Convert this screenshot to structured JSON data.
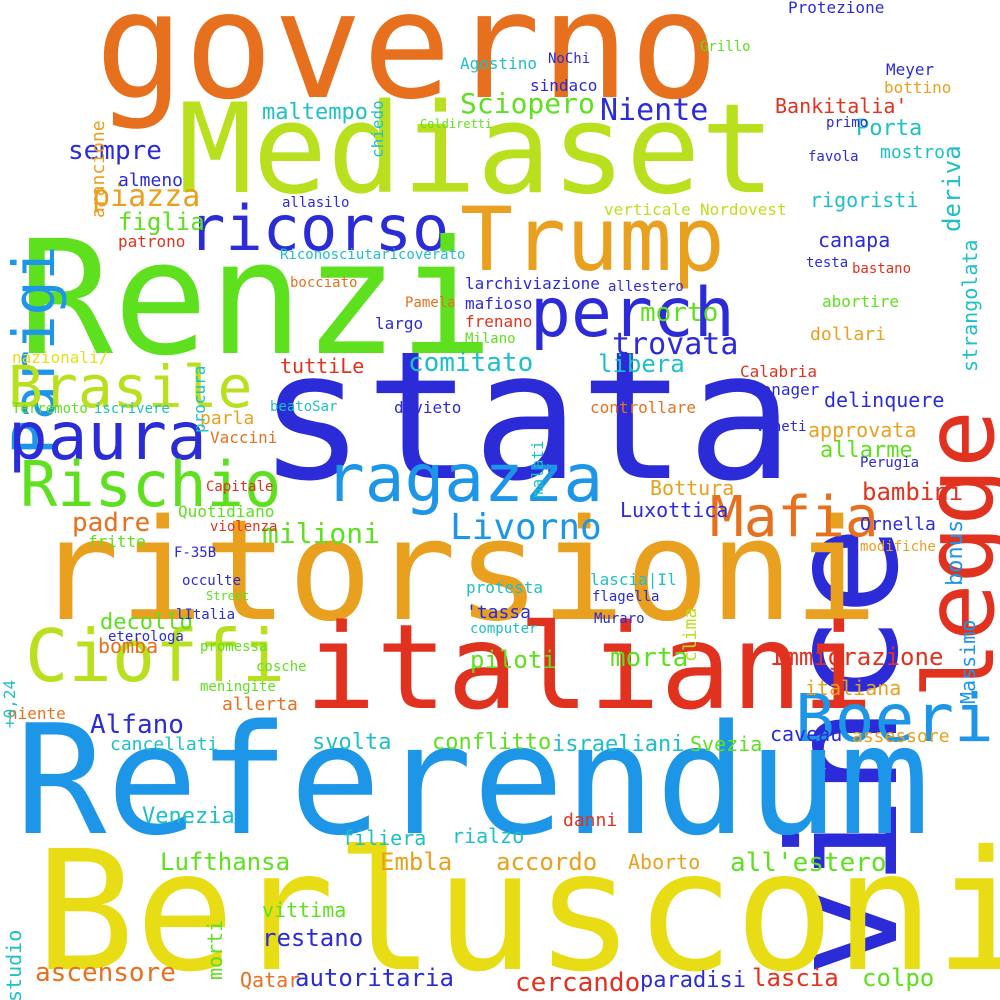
{
  "colors": {
    "blue": "#2b2bd8",
    "sky": "#1e96e8",
    "green": "#5ee01e",
    "lime": "#b8e01e",
    "yellow": "#e8dc14",
    "orange": "#e8a01e",
    "darkorange": "#e6701e",
    "red": "#e0321e",
    "teal": "#1ec0c8",
    "background": "#ffffff"
  },
  "words": [
    {
      "t": "governo",
      "c": "darkorange"
    },
    {
      "t": "Mediaset",
      "c": "lime"
    },
    {
      "t": "Trump",
      "c": "orange"
    },
    {
      "t": "ricorso",
      "c": "blue"
    },
    {
      "t": "Renzi",
      "c": "green"
    },
    {
      "t": "Parigi",
      "c": "sky"
    },
    {
      "t": "vince",
      "c": "blue"
    },
    {
      "t": "legge",
      "c": "red"
    },
    {
      "t": "stata",
      "c": "blue"
    },
    {
      "t": "perch",
      "c": "blue"
    },
    {
      "t": "Brasile",
      "c": "lime"
    },
    {
      "t": "paura",
      "c": "blue"
    },
    {
      "t": "Rischio",
      "c": "green"
    },
    {
      "t": "ragazza",
      "c": "sky"
    },
    {
      "t": "Mafia",
      "c": "darkorange"
    },
    {
      "t": "ritorsioni",
      "c": "orange"
    },
    {
      "t": "Cioffi",
      "c": "lime"
    },
    {
      "t": "italiani",
      "c": "red"
    },
    {
      "t": "Boeri",
      "c": "sky"
    },
    {
      "t": "Referendum",
      "c": "sky"
    },
    {
      "t": "Berlusconi",
      "c": "yellow"
    },
    {
      "t": "Sciopero",
      "c": "green"
    },
    {
      "t": "Niente",
      "c": "blue"
    },
    {
      "t": "Livorno",
      "c": "sky"
    },
    {
      "t": "sempre",
      "c": "blue"
    },
    {
      "t": "piazza",
      "c": "orange"
    },
    {
      "t": "maltempo",
      "c": "teal"
    },
    {
      "t": "figlia",
      "c": "green"
    },
    {
      "t": "almeno",
      "c": "blue"
    },
    {
      "t": "patrono",
      "c": "red"
    },
    {
      "t": "trovata",
      "c": "blue"
    },
    {
      "t": "morto",
      "c": "green"
    },
    {
      "t": "comitato",
      "c": "teal"
    },
    {
      "t": "libera",
      "c": "teal"
    },
    {
      "t": "padre",
      "c": "darkorange"
    },
    {
      "t": "milioni",
      "c": "green"
    },
    {
      "t": "Bankitalia'",
      "c": "red"
    },
    {
      "t": "Porta",
      "c": "teal"
    },
    {
      "t": "deriva",
      "c": "teal"
    },
    {
      "t": "strangolata",
      "c": "teal"
    },
    {
      "t": "mostro",
      "c": "teal"
    },
    {
      "t": "rigoristi",
      "c": "teal"
    },
    {
      "t": "canapa",
      "c": "blue"
    },
    {
      "t": "bambini",
      "c": "red"
    },
    {
      "t": "bonus",
      "c": "sky"
    },
    {
      "t": "allarme",
      "c": "green"
    },
    {
      "t": "delinquere",
      "c": "blue"
    },
    {
      "t": "approvata",
      "c": "orange"
    },
    {
      "t": "Bottura",
      "c": "orange"
    },
    {
      "t": "Luxottica",
      "c": "blue"
    },
    {
      "t": "Massimo",
      "c": "sky"
    },
    {
      "t": "Ornella",
      "c": "blue"
    },
    {
      "t": "Immigrazione",
      "c": "red"
    },
    {
      "t": "morta",
      "c": "green"
    },
    {
      "t": "piloti",
      "c": "green"
    },
    {
      "t": "italiana",
      "c": "orange"
    },
    {
      "t": "Alfano",
      "c": "blue"
    },
    {
      "t": "bomba",
      "c": "darkorange"
    },
    {
      "t": "decollo",
      "c": "green"
    },
    {
      "t": "allerta",
      "c": "darkorange"
    },
    {
      "t": "svolta",
      "c": "teal"
    },
    {
      "t": "conflitto",
      "c": "green"
    },
    {
      "t": "israeliani",
      "c": "teal"
    },
    {
      "t": "Svezia",
      "c": "green"
    },
    {
      "t": "cancellati",
      "c": "teal"
    },
    {
      "t": "Venezia",
      "c": "teal"
    },
    {
      "t": "Lufthansa",
      "c": "green"
    },
    {
      "t": "Embla",
      "c": "orange"
    },
    {
      "t": "accordo",
      "c": "orange"
    },
    {
      "t": "Aborto",
      "c": "orange"
    },
    {
      "t": "all'estero",
      "c": "green"
    },
    {
      "t": "caveau",
      "c": "blue"
    },
    {
      "t": "assessore",
      "c": "orange"
    },
    {
      "t": "ascensore",
      "c": "darkorange"
    },
    {
      "t": "restano",
      "c": "blue"
    },
    {
      "t": "autoritaria",
      "c": "blue"
    },
    {
      "t": "cercando",
      "c": "red"
    },
    {
      "t": "paradisi",
      "c": "blue"
    },
    {
      "t": "lascia",
      "c": "red"
    },
    {
      "t": "colpo",
      "c": "green"
    },
    {
      "t": "studio",
      "c": "teal"
    },
    {
      "t": "morti",
      "c": "green"
    },
    {
      "t": "Qatar",
      "c": "darkorange"
    },
    {
      "t": "vittima",
      "c": "green"
    },
    {
      "t": "filiera",
      "c": "teal"
    },
    {
      "t": "rialzo",
      "c": "teal"
    },
    {
      "t": "danni",
      "c": "red"
    },
    {
      "t": "Agostino",
      "c": "teal"
    },
    {
      "t": "Protezione",
      "c": "blue"
    },
    {
      "t": "verticale",
      "c": "lime"
    },
    {
      "t": "Nordovest",
      "c": "lime"
    },
    {
      "t": "manager",
      "c": "blue"
    },
    {
      "t": "controllare",
      "c": "darkorange"
    },
    {
      "t": "Calabria",
      "c": "red"
    },
    {
      "t": "dollari",
      "c": "orange"
    },
    {
      "t": "abortire",
      "c": "green"
    },
    {
      "t": "Veneti",
      "c": "blue"
    },
    {
      "t": "Perugia",
      "c": "blue"
    },
    {
      "t": "Vaccini",
      "c": "darkorange"
    },
    {
      "t": "parla",
      "c": "orange"
    },
    {
      "t": "divieto",
      "c": "blue"
    },
    {
      "t": "Capitale",
      "c": "red"
    },
    {
      "t": "Quotidiano",
      "c": "green"
    },
    {
      "t": "violenza",
      "c": "red"
    },
    {
      "t": "fritte",
      "c": "green"
    },
    {
      "t": "F-35B",
      "c": "blue"
    },
    {
      "t": "occulte",
      "c": "blue"
    },
    {
      "t": "Street",
      "c": "green"
    },
    {
      "t": "lItalia",
      "c": "blue"
    },
    {
      "t": "eterologa",
      "c": "blue"
    },
    {
      "t": "promessa",
      "c": "green"
    },
    {
      "t": "cosche",
      "c": "green"
    },
    {
      "t": "niente",
      "c": "darkorange"
    },
    {
      "t": "meningite",
      "c": "green"
    },
    {
      "t": "computer",
      "c": "teal"
    },
    {
      "t": "'tassa",
      "c": "blue"
    },
    {
      "t": "protesta",
      "c": "teal"
    },
    {
      "t": "lascia|Il",
      "c": "teal"
    },
    {
      "t": "flagella",
      "c": "blue"
    },
    {
      "t": "Muraro",
      "c": "blue"
    },
    {
      "t": "clima",
      "c": "lime"
    },
    {
      "t": "modifiche",
      "c": "orange"
    },
    {
      "t": "larchiviazione",
      "c": "blue"
    },
    {
      "t": "allestero",
      "c": "blue"
    },
    {
      "t": "mafioso",
      "c": "blue"
    },
    {
      "t": "frenano",
      "c": "red"
    },
    {
      "t": "largo",
      "c": "blue"
    },
    {
      "t": "Pamela",
      "c": "darkorange"
    },
    {
      "t": "Milano",
      "c": "green"
    },
    {
      "t": "nazionali/",
      "c": "yellow"
    },
    {
      "t": "tuttiLe",
      "c": "red"
    },
    {
      "t": "Terremoto",
      "c": "green"
    },
    {
      "t": "iscrivere",
      "c": "teal"
    },
    {
      "t": "beatoSar",
      "c": "teal"
    },
    {
      "t": "Riconosciutaricoverato",
      "c": "teal"
    },
    {
      "t": "bocciato",
      "c": "darkorange"
    },
    {
      "t": "allasilo",
      "c": "blue"
    },
    {
      "t": "sindaco",
      "c": "blue"
    },
    {
      "t": "NoChi",
      "c": "blue"
    },
    {
      "t": "bottino",
      "c": "orange"
    },
    {
      "t": "Meyer",
      "c": "blue"
    },
    {
      "t": "primo",
      "c": "blue"
    },
    {
      "t": "favola",
      "c": "blue"
    },
    {
      "t": "Grillo",
      "c": "green"
    },
    {
      "t": "testa",
      "c": "blue"
    },
    {
      "t": "bastano",
      "c": "red"
    },
    {
      "t": "canapa",
      "c": "blue"
    },
    {
      "t": "procura",
      "c": "teal"
    },
    {
      "t": "malati",
      "c": "teal"
    },
    {
      "t": "+0,24",
      "c": "teal"
    },
    {
      "t": "arancione",
      "c": "orange"
    },
    {
      "t": "chiedo",
      "c": "teal"
    },
    {
      "t": "Coldiretti",
      "c": "green"
    }
  ]
}
